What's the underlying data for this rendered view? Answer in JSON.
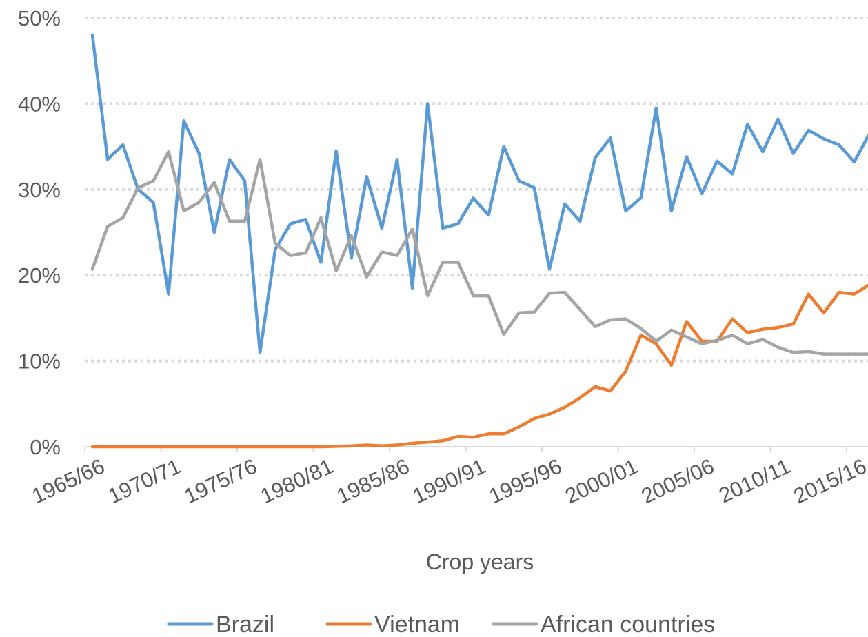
{
  "chart_data": {
    "type": "line",
    "title": "",
    "xlabel": "Crop years",
    "ylabel": "",
    "ylim": [
      0,
      50
    ],
    "y_ticks": [
      0,
      10,
      20,
      30,
      40,
      50
    ],
    "y_tick_labels": [
      "0%",
      "10%",
      "20%",
      "30%",
      "40%",
      "50%"
    ],
    "x_tick_labels": [
      "1965/66",
      "1970/71",
      "1975/76",
      "1980/81",
      "1985/86",
      "1990/91",
      "1995/96",
      "2000/01",
      "2005/06",
      "2010/11",
      "2015/16"
    ],
    "x_tick_every": 5,
    "grid": "horizontal dotted",
    "legend_position": "bottom",
    "categories": [
      "1965/66",
      "1966/67",
      "1967/68",
      "1968/69",
      "1969/70",
      "1970/71",
      "1971/72",
      "1972/73",
      "1973/74",
      "1974/75",
      "1975/76",
      "1976/77",
      "1977/78",
      "1978/79",
      "1979/80",
      "1980/81",
      "1981/82",
      "1982/83",
      "1983/84",
      "1984/85",
      "1985/86",
      "1986/87",
      "1987/88",
      "1988/89",
      "1989/90",
      "1990/91",
      "1991/92",
      "1992/93",
      "1993/94",
      "1994/95",
      "1995/96",
      "1996/97",
      "1997/98",
      "1998/99",
      "1999/00",
      "2000/01",
      "2001/02",
      "2002/03",
      "2003/04",
      "2004/05",
      "2005/06",
      "2006/07",
      "2007/08",
      "2008/09",
      "2009/10",
      "2010/11",
      "2011/12",
      "2012/13",
      "2013/14",
      "2014/15",
      "2015/16",
      "2016/17"
    ],
    "series": [
      {
        "name": "Brazil",
        "color": "#5b9bd5",
        "values": [
          48,
          33.5,
          35.2,
          30,
          28.5,
          17.8,
          38,
          34.2,
          25,
          33.5,
          31,
          11,
          23,
          26,
          26.5,
          21.5,
          34.5,
          22,
          31.5,
          25.5,
          33.5,
          18.5,
          40,
          25.5,
          26,
          29,
          27,
          35,
          31,
          30.2,
          20.7,
          28.3,
          26.3,
          33.7,
          36,
          27.5,
          29,
          39.5,
          27.5,
          33.8,
          29.5,
          33.3,
          31.8,
          37.6,
          34.4,
          38.2,
          34.2,
          36.9,
          35.9,
          35.2,
          33.2,
          36.5
        ]
      },
      {
        "name": "Vietnam",
        "color": "#ed7d31",
        "values": [
          0,
          0,
          0,
          0,
          0,
          0,
          0,
          0,
          0,
          0,
          0,
          0,
          0,
          0,
          0,
          0,
          0.05,
          0.1,
          0.2,
          0.1,
          0.2,
          0.4,
          0.55,
          0.7,
          1.2,
          1.1,
          1.5,
          1.5,
          2.3,
          3.3,
          3.8,
          4.6,
          5.7,
          7,
          6.5,
          8.8,
          13,
          12,
          9.5,
          14.6,
          12.3,
          12.3,
          14.9,
          13.3,
          13.7,
          13.9,
          14.3,
          17.8,
          15.6,
          18,
          17.8,
          18.9
        ]
      },
      {
        "name": "African countries",
        "color": "#a5a5a5",
        "values": [
          20.7,
          25.7,
          26.7,
          30.2,
          31,
          34.4,
          27.5,
          28.5,
          30.8,
          26.3,
          26.3,
          33.5,
          23.7,
          22.3,
          22.6,
          26.7,
          20.5,
          24.6,
          19.8,
          22.7,
          22.3,
          25.4,
          17.6,
          21.5,
          21.5,
          17.6,
          17.6,
          13.1,
          15.6,
          15.7,
          17.9,
          18,
          16,
          14,
          14.8,
          14.9,
          13.8,
          12.3,
          13.6,
          12.8,
          12,
          12.4,
          13,
          12,
          12.5,
          11.6,
          11,
          11.1,
          10.8,
          10.8,
          10.8,
          10.8
        ]
      }
    ]
  }
}
